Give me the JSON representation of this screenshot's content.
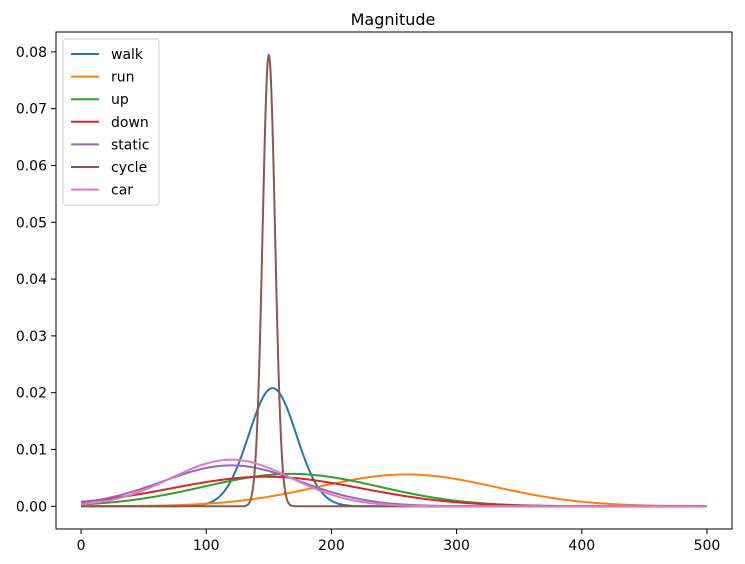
{
  "chart_data": {
    "type": "line",
    "title": "Magnitude",
    "xlabel": "",
    "ylabel": "",
    "xlim": [
      -20,
      520
    ],
    "ylim": [
      -0.004,
      0.0835
    ],
    "xticks": [
      0,
      100,
      200,
      300,
      400,
      500
    ],
    "xtick_labels": [
      "0",
      "100",
      "200",
      "300",
      "400",
      "500"
    ],
    "yticks": [
      0.0,
      0.01,
      0.02,
      0.03,
      0.04,
      0.05,
      0.06,
      0.07,
      0.08
    ],
    "ytick_labels": [
      "0.00",
      "0.01",
      "0.02",
      "0.03",
      "0.04",
      "0.05",
      "0.06",
      "0.07",
      "0.08"
    ],
    "grid": false,
    "legend_position": "top-left",
    "x_domain": [
      0,
      500
    ],
    "series": [
      {
        "name": "walk",
        "color": "#1f77b4",
        "mean": 153,
        "std": 19,
        "peak": 0.0208
      },
      {
        "name": "run",
        "color": "#ff7f0e",
        "mean": 260,
        "std": 71,
        "peak": 0.0056
      },
      {
        "name": "up",
        "color": "#2ca02c",
        "mean": 168,
        "std": 70,
        "peak": 0.0057
      },
      {
        "name": "down",
        "color": "#d62728",
        "mean": 148,
        "std": 76,
        "peak": 0.0052
      },
      {
        "name": "static",
        "color": "#9467bd",
        "mean": 120,
        "std": 55,
        "peak": 0.0072
      },
      {
        "name": "cycle",
        "color": "#8c564b",
        "mean": 150,
        "std": 5,
        "peak": 0.0795
      },
      {
        "name": "car",
        "color": "#e377c2",
        "mean": 120,
        "std": 48,
        "peak": 0.0082
      }
    ]
  }
}
